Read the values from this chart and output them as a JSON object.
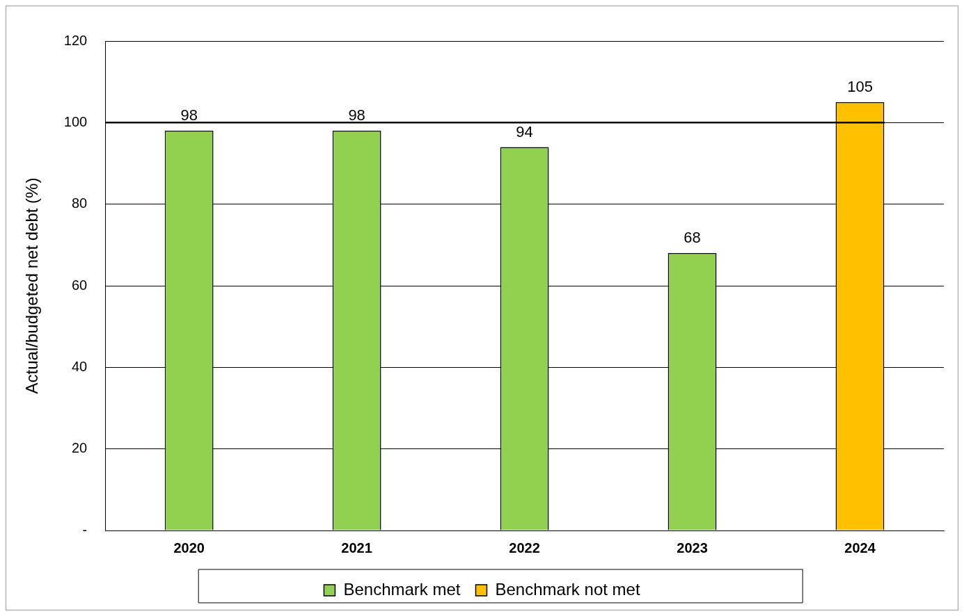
{
  "chart_data": {
    "type": "bar",
    "ylabel": "Actual/budgeted net debt (%)",
    "categories": [
      "2020",
      "2021",
      "2022",
      "2023",
      "2024"
    ],
    "series": [
      {
        "name": "Benchmark met",
        "color": "#92d050",
        "values": [
          98,
          98,
          94,
          68,
          null
        ]
      },
      {
        "name": "Benchmark not met",
        "color": "#ffc000",
        "values": [
          null,
          null,
          null,
          null,
          105
        ]
      }
    ],
    "stacked": true,
    "ylim": [
      0,
      120
    ],
    "yticks": [
      {
        "value": 0,
        "label": "-"
      },
      20,
      40,
      60,
      80,
      100,
      120
    ],
    "ref_lines": [
      {
        "axis": "y",
        "value": 100,
        "color": "#000000"
      }
    ],
    "data_labels": true,
    "grid": "y",
    "legend": "bottom"
  }
}
